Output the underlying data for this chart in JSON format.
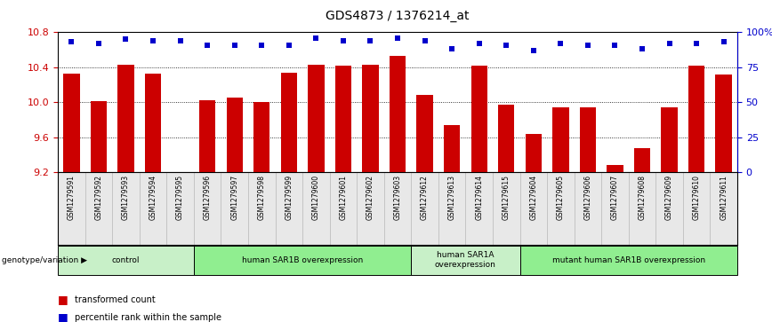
{
  "title": "GDS4873 / 1376214_at",
  "samples": [
    "GSM1279591",
    "GSM1279592",
    "GSM1279593",
    "GSM1279594",
    "GSM1279595",
    "GSM1279596",
    "GSM1279597",
    "GSM1279598",
    "GSM1279599",
    "GSM1279600",
    "GSM1279601",
    "GSM1279602",
    "GSM1279603",
    "GSM1279612",
    "GSM1279613",
    "GSM1279614",
    "GSM1279615",
    "GSM1279604",
    "GSM1279605",
    "GSM1279606",
    "GSM1279607",
    "GSM1279608",
    "GSM1279609",
    "GSM1279610",
    "GSM1279611"
  ],
  "bar_values": [
    10.33,
    10.01,
    10.43,
    10.33,
    9.2,
    10.02,
    10.05,
    10.0,
    10.34,
    10.43,
    10.42,
    10.43,
    10.53,
    10.08,
    9.74,
    10.42,
    9.97,
    9.64,
    9.94,
    9.94,
    9.28,
    9.48,
    9.94,
    10.42,
    10.32
  ],
  "percentile_values": [
    93,
    92,
    95,
    94,
    94,
    91,
    91,
    91,
    91,
    96,
    94,
    94,
    96,
    94,
    88,
    92,
    91,
    87,
    92,
    91,
    91,
    88,
    92,
    92,
    93
  ],
  "ylim": [
    9.2,
    10.8
  ],
  "yticks_left": [
    9.2,
    9.6,
    10.0,
    10.4,
    10.8
  ],
  "yticks_right": [
    0,
    25,
    50,
    75,
    100
  ],
  "yticklabels_right": [
    "0",
    "25",
    "50",
    "75",
    "100%"
  ],
  "bar_color": "#cc0000",
  "dot_color": "#0000cc",
  "groups": [
    {
      "label": "control",
      "start": 0,
      "end": 5,
      "color": "#c8f0c8"
    },
    {
      "label": "human SAR1B overexpression",
      "start": 5,
      "end": 13,
      "color": "#90ee90"
    },
    {
      "label": "human SAR1A\noverexpression",
      "start": 13,
      "end": 17,
      "color": "#c8f0c8"
    },
    {
      "label": "mutant human SAR1B overexpression",
      "start": 17,
      "end": 25,
      "color": "#90ee90"
    }
  ],
  "legend_label_bar": "transformed count",
  "legend_label_dot": "percentile rank within the sample",
  "genotype_label": "genotype/variation",
  "bg_color": "#e8e8e8",
  "plot_bg": "#ffffff"
}
